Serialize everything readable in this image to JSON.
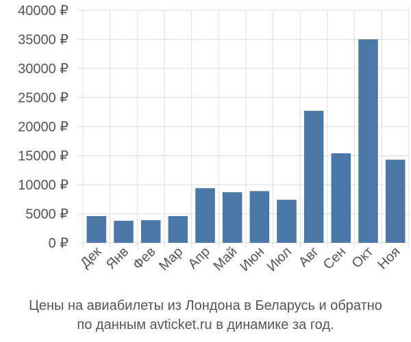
{
  "chart_data": {
    "type": "bar",
    "categories": [
      "Дек",
      "Янв",
      "Фев",
      "Мар",
      "Апр",
      "Май",
      "Июн",
      "Июл",
      "Авг",
      "Сен",
      "Окт",
      "Ноя"
    ],
    "values": [
      4600,
      3800,
      3900,
      4600,
      9400,
      8700,
      8900,
      7400,
      22700,
      15400,
      35000,
      14300
    ],
    "y_ticks": [
      "0 ₽",
      "5000 ₽",
      "10000 ₽",
      "15000 ₽",
      "20000 ₽",
      "25000 ₽",
      "30000 ₽",
      "35000 ₽",
      "40000 ₽"
    ],
    "ylim": [
      0,
      40000
    ],
    "grid": true,
    "bar_color": "#4c78a8",
    "grid_color": "#dddddd"
  },
  "caption": {
    "line1": "Цены на авиабилеты из Лондона в Беларусь и обратно",
    "line2": "по данным avticket.ru в динамике за год."
  }
}
